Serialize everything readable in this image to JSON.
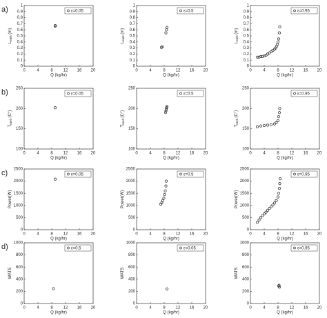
{
  "chart_data": [
    {
      "type": "scatter",
      "panel_label": "a)",
      "xlabel": "Q (kg/hr)",
      "ylabel": {
        "main": "L",
        "sub": "melt",
        "rest": " (m)"
      },
      "xlim": [
        0,
        20
      ],
      "xticks": [
        0,
        4,
        8,
        12,
        16,
        20
      ],
      "ylim": [
        0,
        1
      ],
      "yticks": [
        0,
        0.1,
        0.2,
        0.3,
        0.4,
        0.5,
        0.6,
        0.7,
        0.8,
        0.9,
        1
      ],
      "legend": "upper right",
      "series": [
        {
          "name": "ε=0.05",
          "color": "#333333",
          "x": [
            9,
            9
          ],
          "values": [
            0.66,
            0.67
          ]
        }
      ]
    },
    {
      "type": "scatter",
      "xlabel": "Q (kg/hr)",
      "ylabel": {
        "main": "L",
        "sub": "melt",
        "rest": " (m)"
      },
      "xlim": [
        0,
        20
      ],
      "xticks": [
        0,
        4,
        8,
        12,
        16,
        20
      ],
      "ylim": [
        0,
        1
      ],
      "yticks": [
        0,
        0.1,
        0.2,
        0.3,
        0.4,
        0.5,
        0.6,
        0.7,
        0.8,
        0.9,
        1
      ],
      "legend": "upper right",
      "series": [
        {
          "name": "ε=0.5",
          "color": "#333333",
          "x": [
            7.2,
            7.5,
            8.5,
            8.7,
            8.8
          ],
          "values": [
            0.31,
            0.32,
            0.55,
            0.6,
            0.64
          ]
        }
      ]
    },
    {
      "type": "scatter",
      "xlabel": "Q (kg/hr)",
      "ylabel": {
        "main": "L",
        "sub": "melt",
        "rest": " (m)"
      },
      "xlim": [
        0,
        20
      ],
      "xticks": [
        0,
        4,
        8,
        12,
        16,
        20
      ],
      "ylim": [
        0,
        1
      ],
      "yticks": [
        0,
        0.1,
        0.2,
        0.3,
        0.4,
        0.5,
        0.6,
        0.7,
        0.8,
        0.9,
        1
      ],
      "legend": "upper right",
      "series": [
        {
          "name": "ε=0.95",
          "color": "#333333",
          "x": [
            2,
            2.5,
            3,
            3.5,
            4,
            4.5,
            5,
            5.5,
            6,
            6.5,
            7,
            7.3,
            7.6,
            7.8,
            8,
            8.2,
            8.4,
            8.5
          ],
          "values": [
            0.15,
            0.15,
            0.16,
            0.16,
            0.17,
            0.18,
            0.2,
            0.22,
            0.24,
            0.26,
            0.28,
            0.3,
            0.33,
            0.36,
            0.4,
            0.45,
            0.55,
            0.65
          ]
        }
      ]
    },
    {
      "type": "scatter",
      "panel_label": "b)",
      "xlabel": "Q (kg/hr)",
      "ylabel": {
        "main": "T",
        "sub": "melt",
        "rest": " (C°)"
      },
      "xlim": [
        0,
        20
      ],
      "xticks": [
        0,
        4,
        8,
        12,
        16,
        20
      ],
      "ylim": [
        100,
        250
      ],
      "yticks": [
        100,
        150,
        200,
        250
      ],
      "legend": "upper right",
      "series": [
        {
          "name": "ε=0.05",
          "color": "#333333",
          "x": [
            9
          ],
          "values": [
            202
          ]
        }
      ]
    },
    {
      "type": "scatter",
      "xlabel": "Q (kg/hr)",
      "ylabel": {
        "main": "T",
        "sub": "melt",
        "rest": " (C°)"
      },
      "xlim": [
        0,
        20
      ],
      "xticks": [
        0,
        4,
        8,
        12,
        16,
        20
      ],
      "ylim": [
        100,
        250
      ],
      "yticks": [
        100,
        150,
        200,
        250
      ],
      "legend": "upper right",
      "series": [
        {
          "name": "ε=0.5",
          "color": "#333333",
          "x": [
            8.4,
            8.5,
            8.6,
            8.7,
            8.8
          ],
          "values": [
            190,
            194,
            198,
            202,
            205
          ]
        }
      ]
    },
    {
      "type": "scatter",
      "xlabel": "Q (kg/hr)",
      "ylabel": {
        "main": "T",
        "sub": "melt",
        "rest": " (C°)"
      },
      "xlim": [
        0,
        20
      ],
      "xticks": [
        0,
        4,
        8,
        12,
        16,
        20
      ],
      "ylim": [
        100,
        250
      ],
      "yticks": [
        100,
        150,
        200,
        250
      ],
      "legend": "upper right",
      "series": [
        {
          "name": "ε=0.95",
          "color": "#333333",
          "x": [
            2,
            3,
            4,
            5,
            6,
            7,
            7.5,
            8,
            8.2,
            8.4,
            8.5
          ],
          "values": [
            155,
            157,
            158,
            159,
            160,
            162,
            165,
            170,
            180,
            190,
            200
          ]
        }
      ]
    },
    {
      "type": "scatter",
      "panel_label": "c)",
      "xlabel": "Q (kg/hr)",
      "ylabel": {
        "main": "Power(W)"
      },
      "xlim": [
        0,
        20
      ],
      "xticks": [
        0,
        4,
        8,
        12,
        16,
        20
      ],
      "ylim": [
        0,
        2500
      ],
      "yticks": [
        0,
        500,
        1000,
        1500,
        2000,
        2500
      ],
      "legend": "upper right",
      "series": [
        {
          "name": "ε=0.05",
          "color": "#333333",
          "x": [
            9
          ],
          "values": [
            2080
          ]
        }
      ]
    },
    {
      "type": "scatter",
      "xlabel": "Q (kg/hr)",
      "ylabel": {
        "main": "Power(W)"
      },
      "xlim": [
        0,
        20
      ],
      "xticks": [
        0,
        4,
        8,
        12,
        16,
        20
      ],
      "ylim": [
        0,
        2500
      ],
      "yticks": [
        0,
        500,
        1000,
        1500,
        2000,
        2500
      ],
      "legend": "upper right",
      "series": [
        {
          "name": "ε=0.5",
          "color": "#333333",
          "x": [
            7,
            7.3,
            7.6,
            7.9,
            8.1,
            8.3,
            8.5,
            8.6
          ],
          "values": [
            1050,
            1100,
            1200,
            1300,
            1450,
            1600,
            1800,
            2000
          ]
        }
      ]
    },
    {
      "type": "scatter",
      "xlabel": "Q (kg/hr)",
      "ylabel": {
        "main": "Power(W)"
      },
      "xlim": [
        0,
        20
      ],
      "xticks": [
        0,
        4,
        8,
        12,
        16,
        20
      ],
      "ylim": [
        0,
        2500
      ],
      "yticks": [
        0,
        500,
        1000,
        1500,
        2000,
        2500
      ],
      "legend": "upper right",
      "series": [
        {
          "name": "ε=0.95",
          "color": "#333333",
          "x": [
            2,
            2.5,
            3,
            3.5,
            4,
            4.5,
            5,
            5.5,
            6,
            6.5,
            7,
            7.5,
            8,
            8.2,
            8.4,
            8.5,
            8.6
          ],
          "values": [
            300,
            400,
            500,
            580,
            650,
            720,
            800,
            880,
            950,
            1020,
            1100,
            1200,
            1350,
            1500,
            1700,
            1900,
            2100
          ]
        }
      ]
    },
    {
      "type": "scatter",
      "panel_label": "d)",
      "xlabel": "Q (kg/hr)",
      "ylabel": {
        "main": "WATS"
      },
      "xlim": [
        0,
        20
      ],
      "xticks": [
        0,
        4,
        8,
        12,
        16,
        20
      ],
      "ylim": [
        0,
        1000
      ],
      "yticks": [
        0,
        200,
        400,
        600,
        800,
        1000
      ],
      "legend": "upper right",
      "series": [
        {
          "name": "ε=0.5",
          "color": "#333333",
          "x": [
            8.5
          ],
          "values": [
            245
          ]
        }
      ]
    },
    {
      "type": "scatter",
      "xlabel": "Q (kg/hr)",
      "ylabel": {
        "main": "WATS"
      },
      "xlim": [
        0,
        20
      ],
      "xticks": [
        0,
        4,
        8,
        12,
        16,
        20
      ],
      "ylim": [
        0,
        1000
      ],
      "yticks": [
        0,
        200,
        400,
        600,
        800,
        1000
      ],
      "legend": "upper right",
      "series": [
        {
          "name": "ε=0.05",
          "color": "#333333",
          "x": [
            8.8
          ],
          "values": [
            240
          ]
        }
      ]
    },
    {
      "type": "scatter",
      "xlabel": "Q (kg/hr)",
      "ylabel": {
        "main": "WATS"
      },
      "xlim": [
        0,
        20
      ],
      "xticks": [
        0,
        4,
        8,
        12,
        16,
        20
      ],
      "ylim": [
        0,
        1000
      ],
      "yticks": [
        0,
        200,
        400,
        600,
        800,
        1000
      ],
      "legend": "upper right",
      "series": [
        {
          "name": "ε=0.95",
          "color": "#333333",
          "x": [
            8.2,
            8.3,
            8.4
          ],
          "values": [
            290,
            300,
            270
          ]
        }
      ]
    }
  ]
}
